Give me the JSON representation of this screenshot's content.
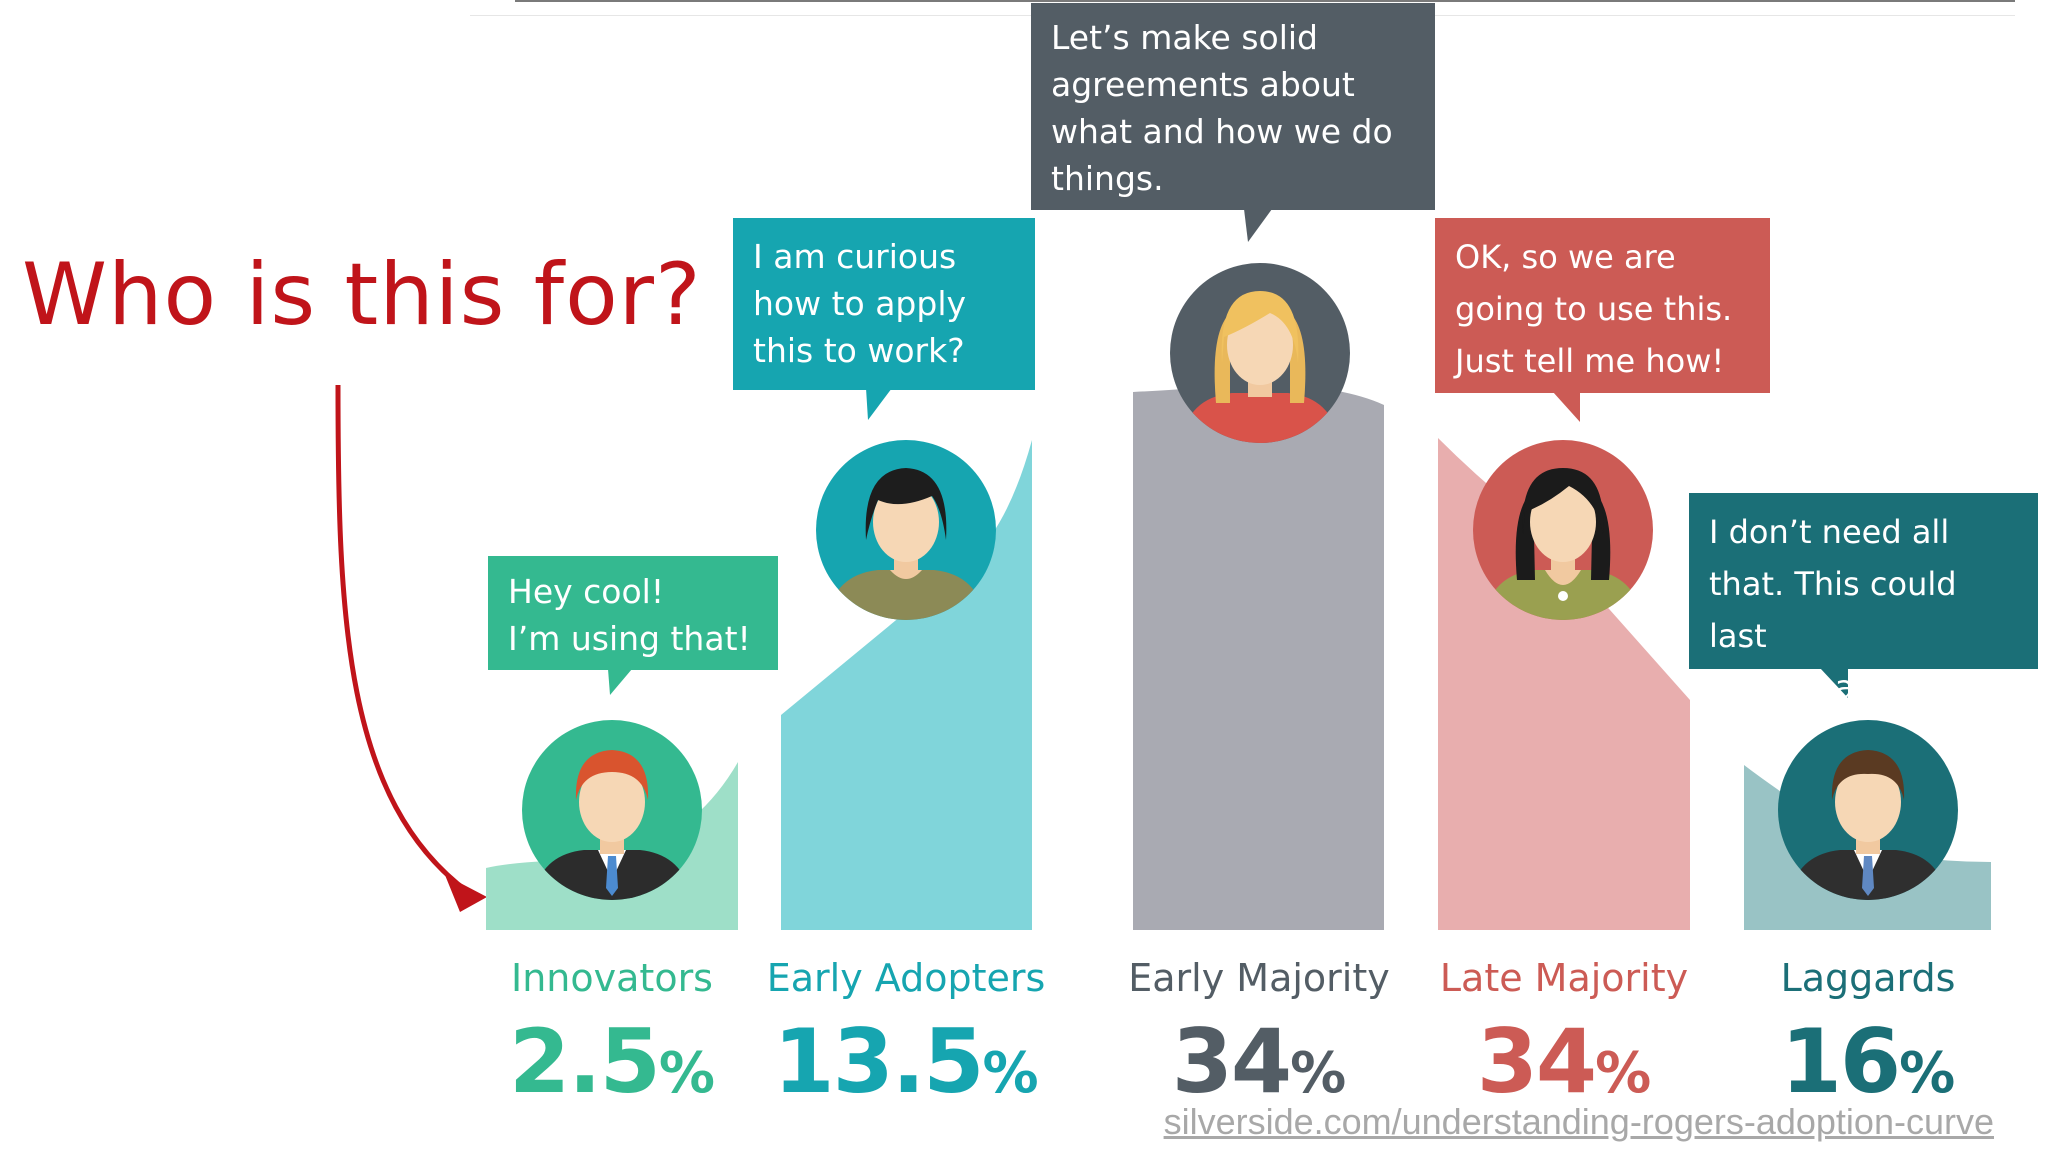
{
  "title": "Who is this for?",
  "segments": [
    {
      "name": "Innovators",
      "pct": "2.5",
      "unit": "%",
      "quote": "Hey cool!\nI’m using that!",
      "color": "#34b990",
      "fill": "#9edfc8"
    },
    {
      "name": "Early Adopters",
      "pct": "13.5",
      "unit": "%",
      "quote": "I am curious\nhow to apply\nthis to work?",
      "color": "#16a5b0",
      "fill": "#80d5da"
    },
    {
      "name": "Early Majority",
      "pct": "34",
      "unit": "%",
      "quote": "Let’s make solid\nagreements about\nwhat and how we do\nthings.",
      "color": "#535d65",
      "fill": "#a9aab2"
    },
    {
      "name": "Late Majority",
      "pct": "34",
      "unit": "%",
      "quote": "OK, so we are\ngoing to use this.\nJust tell me how!",
      "color": "#cc5b55",
      "fill": "#e8aeae"
    },
    {
      "name": "Laggards",
      "pct": "16",
      "unit": "%",
      "quote": "I don’t need all\nthat. This could last\nas long as I do.",
      "color": "#1b6f77",
      "fill": "#99c3c5"
    }
  ],
  "source": "silverside.com/understanding-rogers-adoption-curve",
  "colors": {
    "title": "#c0141a",
    "arrow": "#c0141a"
  }
}
